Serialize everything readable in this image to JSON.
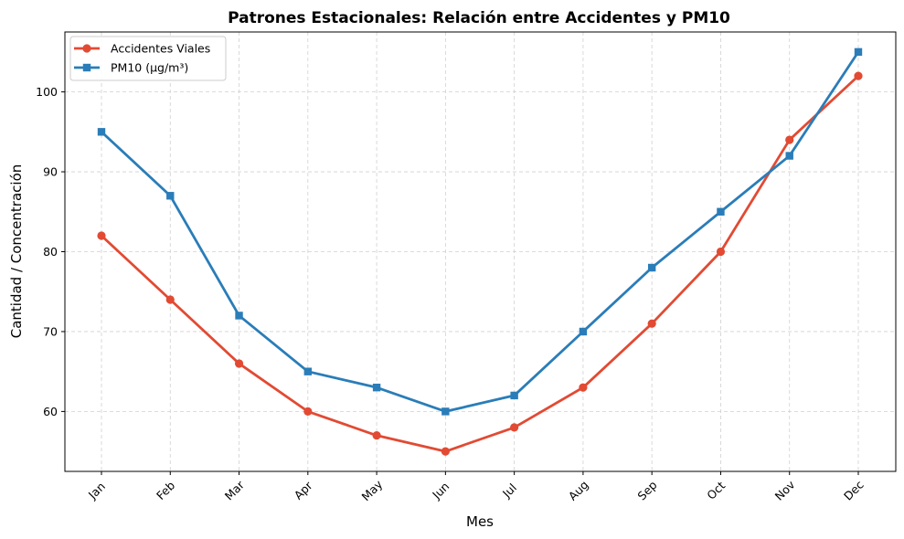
{
  "chart_data": {
    "type": "line",
    "title": "Patrones Estacionales: Relación entre Accidentes y PM10",
    "xlabel": "Mes",
    "ylabel": "Cantidad / Concentración",
    "categories": [
      "Jan",
      "Feb",
      "Mar",
      "Apr",
      "May",
      "Jun",
      "Jul",
      "Aug",
      "Sep",
      "Oct",
      "Nov",
      "Dec"
    ],
    "yticks": [
      60,
      70,
      80,
      90,
      100
    ],
    "ylim": [
      52.5,
      107.5
    ],
    "grid": true,
    "legend_position": "top-left",
    "series": [
      {
        "name": "Accidentes Viales",
        "color": "#e24a33",
        "marker": "circle",
        "values": [
          82,
          74,
          66,
          60,
          57,
          55,
          58,
          63,
          71,
          80,
          94,
          102
        ]
      },
      {
        "name": "PM10 (µg/m³)",
        "color": "#2a7db8",
        "marker": "square",
        "values": [
          95,
          87,
          72,
          65,
          63,
          60,
          62,
          70,
          78,
          85,
          92,
          105
        ]
      }
    ]
  }
}
